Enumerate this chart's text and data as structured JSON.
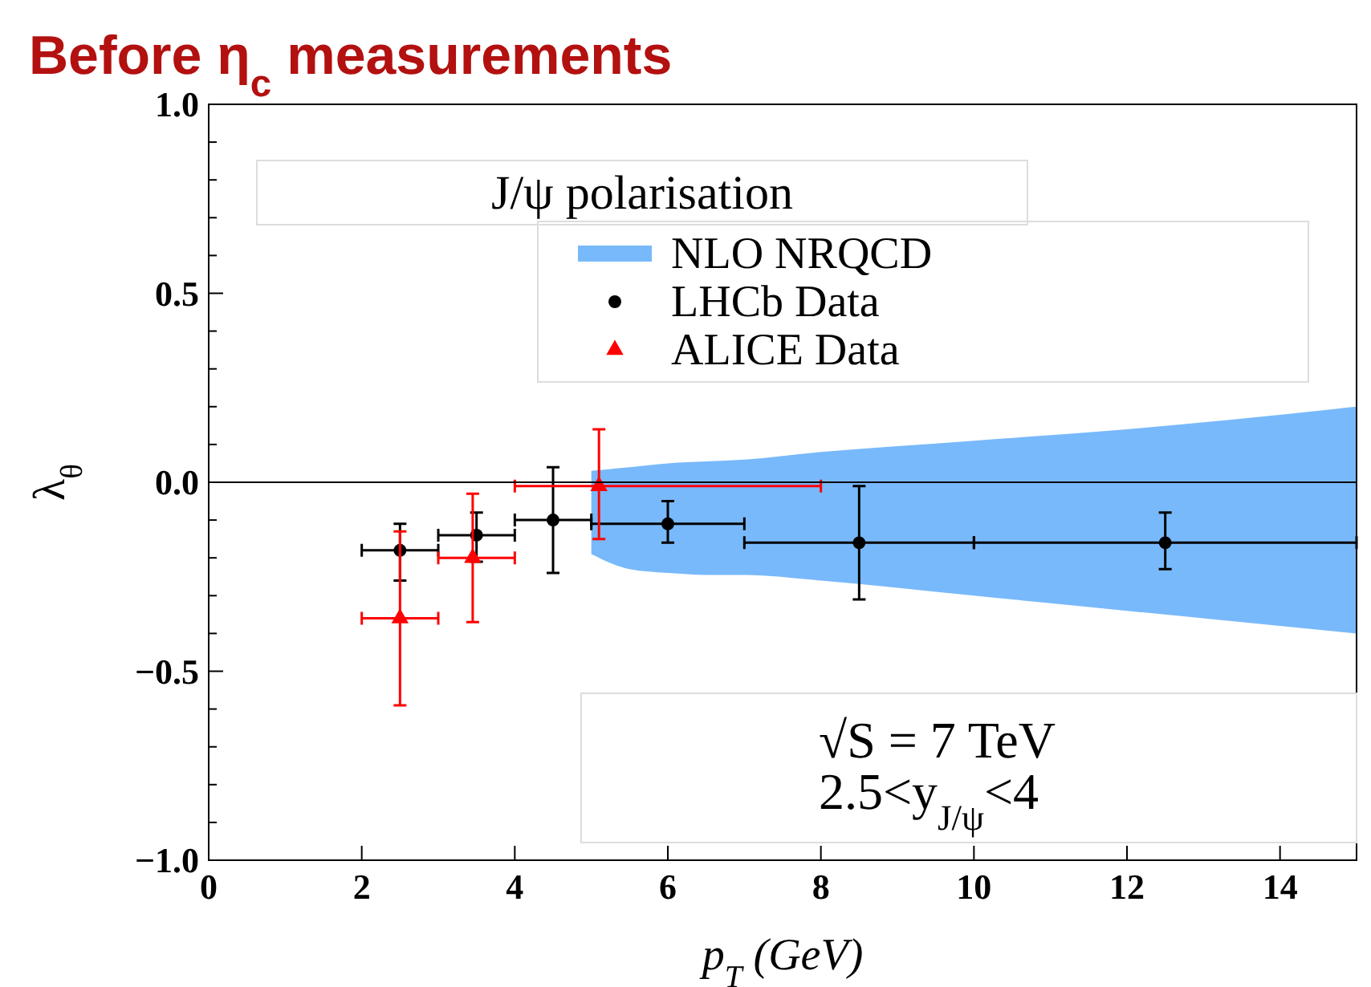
{
  "chart_data": {
    "type": "scatter",
    "title": "Before η$_{c}$ measurements",
    "xlabel": "p$_{T}$ (GeV)",
    "ylabel": "λ$_{θ}$",
    "legend_title": "J/ψ polarisation",
    "legend": "top right",
    "xlim": [
      0,
      15
    ],
    "xticks": [
      0,
      2,
      4,
      6,
      8,
      10,
      12,
      14
    ],
    "ylim": [
      -1,
      1
    ],
    "yticks": [
      {
        "value": -1,
        "label": "−1.0"
      },
      {
        "value": -0.9,
        "label": null
      },
      {
        "value": -0.8,
        "label": null
      },
      {
        "value": -0.7,
        "label": null
      },
      {
        "value": -0.6,
        "label": null
      },
      {
        "value": -0.5,
        "label": "−0.5"
      },
      {
        "value": -0.4,
        "label": null
      },
      {
        "value": -0.3,
        "label": null
      },
      {
        "value": -0.2,
        "label": null
      },
      {
        "value": -0.1,
        "label": null
      },
      {
        "value": 0,
        "label": "0.0"
      },
      {
        "value": 0.1,
        "label": null
      },
      {
        "value": 0.2,
        "label": null
      },
      {
        "value": 0.3,
        "label": null
      },
      {
        "value": 0.4,
        "label": null
      },
      {
        "value": 0.5,
        "label": "0.5"
      },
      {
        "value": 0.6,
        "label": null
      },
      {
        "value": 0.7,
        "label": null
      },
      {
        "value": 0.8,
        "label": null
      },
      {
        "value": 0.9,
        "label": null
      },
      {
        "value": 1,
        "label": "1.0"
      }
    ],
    "ref_lines": [
      {
        "axis": "y",
        "value": 0,
        "color": "#000000"
      }
    ],
    "series": [
      {
        "name": "NLO NRQCD",
        "type": "area",
        "color": "#78b9fb",
        "x": [
          5,
          5.5,
          6,
          6.5,
          7,
          8,
          10,
          12,
          15
        ],
        "values": [
          null,
          null,
          null,
          null,
          null,
          null,
          null,
          null,
          null
        ],
        "upper": [
          0.03,
          0.04,
          0.05,
          0.055,
          0.06,
          0.08,
          0.11,
          0.14,
          0.2
        ],
        "lower": [
          -0.19,
          -0.23,
          -0.24,
          -0.245,
          -0.245,
          -0.26,
          -0.3,
          -0.34,
          -0.4
        ]
      },
      {
        "name": "LHCb Data",
        "marker": "circle",
        "color": "#000000",
        "x": [
          2.5,
          3.5,
          4.5,
          6,
          8.5,
          12.5
        ],
        "values": [
          -0.18,
          -0.14,
          -0.1,
          -0.11,
          -0.16,
          -0.16
        ],
        "errors": [
          [
            -0.26,
            -0.11
          ],
          [
            -0.21,
            -0.08
          ],
          [
            -0.24,
            0.04
          ],
          [
            -0.16,
            -0.05
          ],
          [
            -0.31,
            -0.01
          ],
          [
            -0.23,
            -0.08
          ]
        ],
        "xerrors": [
          [
            2,
            3
          ],
          [
            3,
            4
          ],
          [
            4,
            5
          ],
          [
            5,
            7
          ],
          [
            7,
            10
          ],
          [
            10,
            15
          ]
        ]
      },
      {
        "name": "ALICE Data",
        "marker": "triangle",
        "color": "#ff0000",
        "x": [
          2.5,
          3.45,
          5.1
        ],
        "values": [
          -0.36,
          -0.2,
          -0.01
        ],
        "errors": [
          [
            -0.59,
            -0.13
          ],
          [
            -0.37,
            -0.03
          ],
          [
            -0.15,
            0.14
          ]
        ],
        "xerrors": [
          [
            2,
            3
          ],
          [
            3,
            4
          ],
          [
            4,
            8
          ]
        ]
      }
    ],
    "annotations": [
      "√S = 7 TeV",
      "2.5<y$_{J/ψ}$<4"
    ]
  }
}
